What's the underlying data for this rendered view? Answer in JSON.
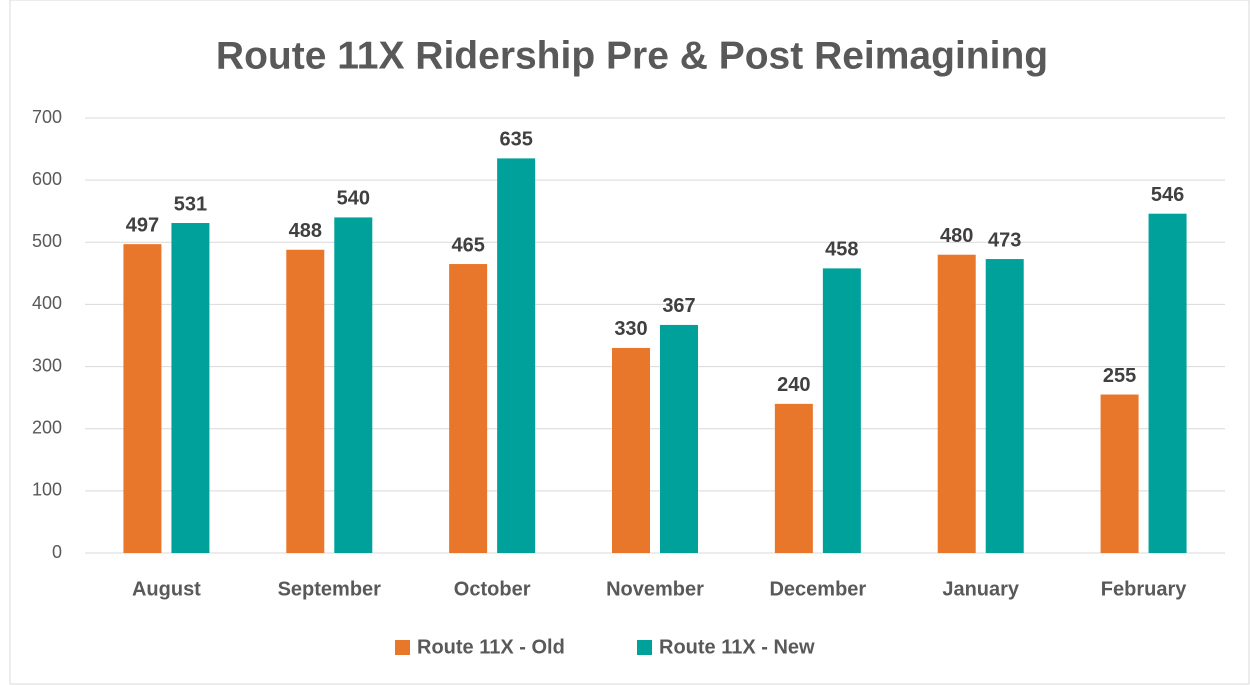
{
  "chart_data": {
    "type": "bar",
    "title": "Route 11X Ridership Pre & Post Reimagining",
    "categories": [
      "August",
      "September",
      "October",
      "November",
      "December",
      "January",
      "February"
    ],
    "series": [
      {
        "name": "Route 11X - Old",
        "color": "#e8762b",
        "values": [
          497,
          488,
          465,
          330,
          240,
          480,
          255
        ]
      },
      {
        "name": "Route 11X - New",
        "color": "#00a19a",
        "values": [
          531,
          540,
          635,
          367,
          458,
          473,
          546
        ]
      }
    ],
    "ylim": [
      0,
      700
    ],
    "yticks": [
      0,
      100,
      200,
      300,
      400,
      500,
      600,
      700
    ],
    "grid": true,
    "legend": "bottom"
  }
}
